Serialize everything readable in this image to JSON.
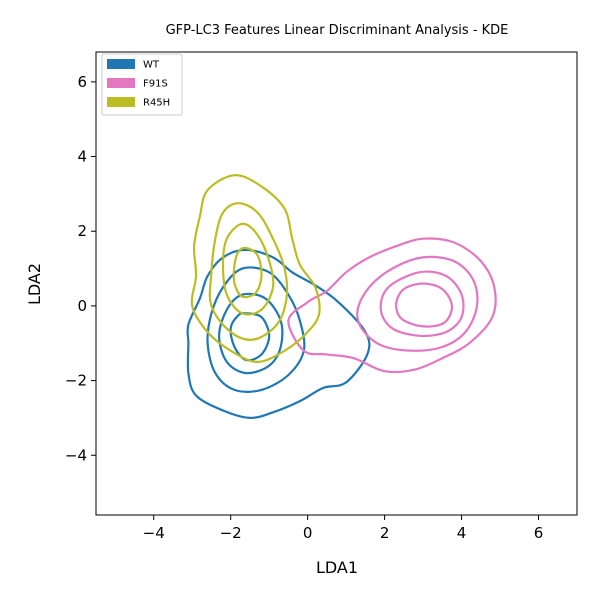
{
  "chart_data": {
    "type": "kde-contour",
    "title": "GFP-LC3 Features Linear Discriminant Analysis - KDE",
    "xlabel": "LDA1",
    "ylabel": "LDA2",
    "xlim": [
      -5.5,
      7.0
    ],
    "ylim": [
      -5.6,
      6.8
    ],
    "xticks": [
      -4,
      -2,
      0,
      2,
      4,
      6
    ],
    "yticks": [
      -4,
      -2,
      0,
      2,
      4,
      6
    ],
    "xtick_labels": [
      "−4",
      "−2",
      "0",
      "2",
      "4",
      "6"
    ],
    "ytick_labels": [
      "−4",
      "−2",
      "0",
      "2",
      "4",
      "6"
    ],
    "grid": false,
    "legend_position": "upper-left",
    "series": [
      {
        "name": "WT",
        "color": "#1f77b4",
        "contours": [
          [
            [
              -1.6,
              1.5
            ],
            [
              -0.9,
              1.3
            ],
            [
              -0.4,
              0.9
            ],
            [
              0.2,
              0.55
            ],
            [
              0.8,
              0.1
            ],
            [
              1.5,
              -0.7
            ],
            [
              1.55,
              -1.3
            ],
            [
              1.0,
              -2.05
            ],
            [
              0.4,
              -2.2
            ],
            [
              -0.2,
              -2.55
            ],
            [
              -0.9,
              -2.85
            ],
            [
              -1.5,
              -3.0
            ],
            [
              -2.2,
              -2.8
            ],
            [
              -2.9,
              -2.4
            ],
            [
              -3.1,
              -1.8
            ],
            [
              -3.1,
              -1.0
            ],
            [
              -3.1,
              -0.5
            ],
            [
              -2.8,
              0.2
            ],
            [
              -2.6,
              0.8
            ],
            [
              -2.2,
              1.3
            ]
          ],
          [
            [
              -1.7,
              1.0
            ],
            [
              -1.0,
              0.9
            ],
            [
              -0.5,
              0.3
            ],
            [
              -0.2,
              -0.4
            ],
            [
              -0.1,
              -1.2
            ],
            [
              -0.5,
              -1.85
            ],
            [
              -1.2,
              -2.25
            ],
            [
              -1.9,
              -2.25
            ],
            [
              -2.4,
              -1.8
            ],
            [
              -2.6,
              -1.0
            ],
            [
              -2.5,
              -0.2
            ],
            [
              -2.2,
              0.5
            ]
          ],
          [
            [
              -1.7,
              0.3
            ],
            [
              -1.1,
              0.2
            ],
            [
              -0.7,
              -0.4
            ],
            [
              -0.7,
              -1.1
            ],
            [
              -1.0,
              -1.6
            ],
            [
              -1.6,
              -1.8
            ],
            [
              -2.1,
              -1.5
            ],
            [
              -2.3,
              -0.8
            ],
            [
              -2.1,
              -0.1
            ]
          ],
          [
            [
              -1.6,
              -0.2
            ],
            [
              -1.2,
              -0.3
            ],
            [
              -1.0,
              -0.8
            ],
            [
              -1.2,
              -1.3
            ],
            [
              -1.6,
              -1.45
            ],
            [
              -1.9,
              -1.1
            ],
            [
              -2.0,
              -0.6
            ],
            [
              -1.8,
              -0.25
            ]
          ]
        ]
      },
      {
        "name": "F91S",
        "color": "#e377c2",
        "contours": [
          [
            [
              3.0,
              1.8
            ],
            [
              3.8,
              1.7
            ],
            [
              4.5,
              1.2
            ],
            [
              4.85,
              0.5
            ],
            [
              4.8,
              -0.3
            ],
            [
              4.2,
              -1.0
            ],
            [
              3.5,
              -1.4
            ],
            [
              2.8,
              -1.7
            ],
            [
              2.0,
              -1.75
            ],
            [
              1.2,
              -1.4
            ],
            [
              0.5,
              -1.3
            ],
            [
              -0.1,
              -1.2
            ],
            [
              -0.5,
              -0.4
            ],
            [
              0.0,
              0.1
            ],
            [
              0.5,
              0.4
            ],
            [
              1.0,
              0.9
            ],
            [
              1.6,
              1.3
            ],
            [
              2.3,
              1.6
            ]
          ],
          [
            [
              3.0,
              1.3
            ],
            [
              3.8,
              1.2
            ],
            [
              4.3,
              0.7
            ],
            [
              4.4,
              0.0
            ],
            [
              4.1,
              -0.7
            ],
            [
              3.5,
              -1.1
            ],
            [
              2.7,
              -1.2
            ],
            [
              1.9,
              -1.05
            ],
            [
              1.4,
              -0.6
            ],
            [
              1.3,
              -0.1
            ],
            [
              1.6,
              0.5
            ],
            [
              2.2,
              1.0
            ]
          ],
          [
            [
              2.9,
              0.9
            ],
            [
              3.6,
              0.8
            ],
            [
              4.0,
              0.3
            ],
            [
              4.0,
              -0.3
            ],
            [
              3.6,
              -0.7
            ],
            [
              2.9,
              -0.8
            ],
            [
              2.2,
              -0.6
            ],
            [
              1.9,
              -0.1
            ],
            [
              2.1,
              0.5
            ]
          ],
          [
            [
              3.0,
              0.6
            ],
            [
              3.5,
              0.45
            ],
            [
              3.75,
              0.0
            ],
            [
              3.55,
              -0.45
            ],
            [
              3.0,
              -0.55
            ],
            [
              2.45,
              -0.35
            ],
            [
              2.3,
              0.05
            ],
            [
              2.5,
              0.45
            ]
          ]
        ]
      },
      {
        "name": "R45H",
        "color": "#bcbd22",
        "contours": [
          [
            [
              -1.9,
              3.5
            ],
            [
              -1.2,
              3.2
            ],
            [
              -0.6,
              2.6
            ],
            [
              -0.4,
              1.8
            ],
            [
              -0.2,
              1.1
            ],
            [
              0.2,
              0.5
            ],
            [
              0.3,
              -0.2
            ],
            [
              0.0,
              -0.7
            ],
            [
              -0.6,
              -1.2
            ],
            [
              -1.3,
              -1.5
            ],
            [
              -2.0,
              -1.2
            ],
            [
              -2.6,
              -0.7
            ],
            [
              -3.0,
              0.0
            ],
            [
              -2.9,
              0.8
            ],
            [
              -2.95,
              1.6
            ],
            [
              -2.8,
              2.4
            ],
            [
              -2.6,
              3.1
            ]
          ],
          [
            [
              -1.8,
              2.75
            ],
            [
              -1.3,
              2.5
            ],
            [
              -0.9,
              1.8
            ],
            [
              -0.6,
              1.0
            ],
            [
              -0.55,
              0.2
            ],
            [
              -0.8,
              -0.5
            ],
            [
              -1.4,
              -0.9
            ],
            [
              -2.0,
              -0.7
            ],
            [
              -2.5,
              0.0
            ],
            [
              -2.5,
              0.9
            ],
            [
              -2.4,
              1.8
            ],
            [
              -2.2,
              2.5
            ]
          ],
          [
            [
              -1.7,
              2.2
            ],
            [
              -1.3,
              1.9
            ],
            [
              -1.0,
              1.2
            ],
            [
              -0.9,
              0.5
            ],
            [
              -1.2,
              -0.1
            ],
            [
              -1.7,
              -0.2
            ],
            [
              -2.1,
              0.3
            ],
            [
              -2.2,
              1.1
            ],
            [
              -2.1,
              1.8
            ]
          ],
          [
            [
              -1.6,
              1.55
            ],
            [
              -1.3,
              1.35
            ],
            [
              -1.2,
              0.8
            ],
            [
              -1.35,
              0.35
            ],
            [
              -1.7,
              0.25
            ],
            [
              -1.9,
              0.6
            ],
            [
              -1.9,
              1.1
            ],
            [
              -1.8,
              1.45
            ]
          ]
        ]
      }
    ]
  }
}
